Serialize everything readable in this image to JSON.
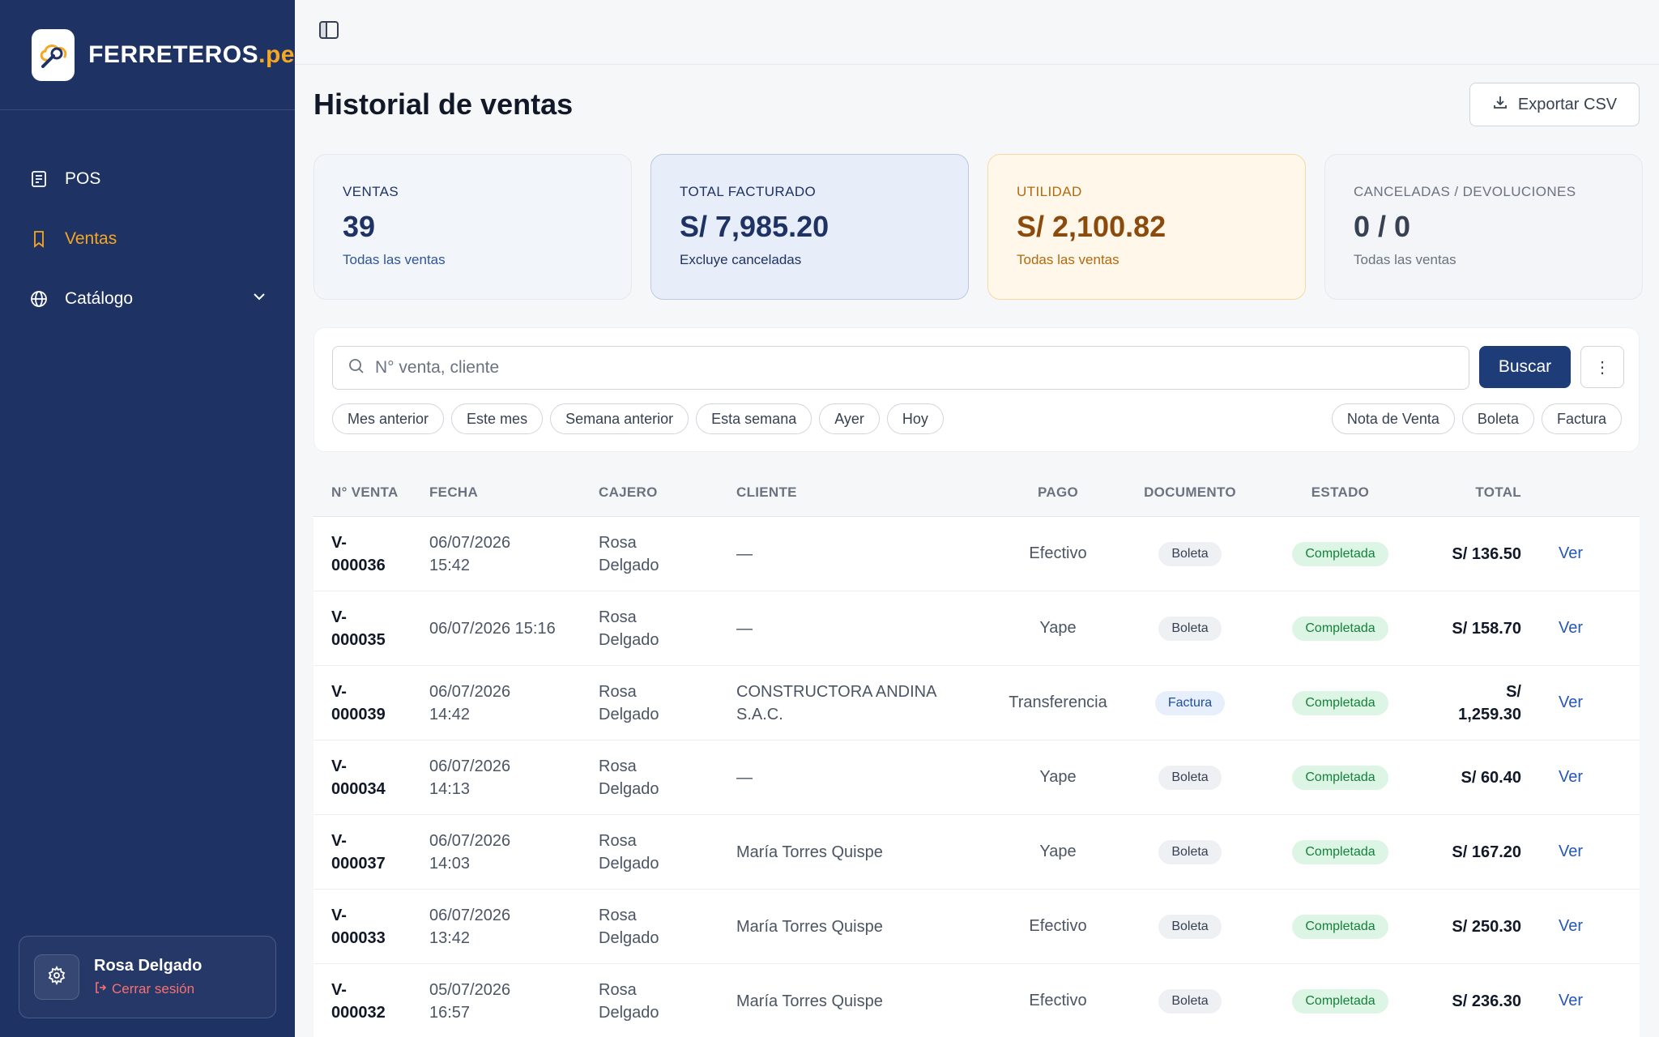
{
  "sidebar": {
    "brand": {
      "name": "FERRETEROS",
      "suffix": ".pe"
    },
    "nav": [
      {
        "label": "POS",
        "icon": "receipt-icon"
      },
      {
        "label": "Ventas",
        "icon": "bookmark-icon",
        "active": true
      },
      {
        "label": "Catálogo",
        "icon": "globe-icon"
      }
    ],
    "user": {
      "name": "Rosa Delgado",
      "logout": "Cerrar sesión"
    }
  },
  "header": {
    "title": "Historial de ventas",
    "export_label": "Exportar CSV"
  },
  "stats": [
    {
      "label": "VENTAS",
      "value": "39",
      "sub": "Todas las ventas"
    },
    {
      "label": "TOTAL FACTURADO",
      "value": "S/ 7,985.20",
      "sub": "Excluye canceladas"
    },
    {
      "label": "UTILIDAD",
      "value": "S/ 2,100.82",
      "sub": "Todas las ventas"
    },
    {
      "label": "CANCELADAS / DEVOLUCIONES",
      "value": "0 / 0",
      "sub": "Todas las ventas"
    }
  ],
  "filters": {
    "search_placeholder": "N° venta, cliente",
    "search_button": "Buscar",
    "date_chips": [
      "Mes anterior",
      "Este mes",
      "Semana anterior",
      "Esta semana",
      "Ayer",
      "Hoy"
    ],
    "doc_chips": [
      "Nota de Venta",
      "Boleta",
      "Factura"
    ]
  },
  "table": {
    "columns": [
      "N° VENTA",
      "FECHA",
      "CAJERO",
      "CLIENTE",
      "PAGO",
      "DOCUMENTO",
      "ESTADO",
      "TOTAL"
    ],
    "action_label": "Ver",
    "rows": [
      {
        "no": "V-\n000036",
        "fecha": "06/07/2026\n15:42",
        "cajero": "Rosa\nDelgado",
        "cliente": "—",
        "pago": "Efectivo",
        "documento": "Boleta",
        "estado": "Completada",
        "total": "S/ 136.50"
      },
      {
        "no": "V-\n000035",
        "fecha": "06/07/2026 15:16",
        "cajero": "Rosa\nDelgado",
        "cliente": "—",
        "pago": "Yape",
        "documento": "Boleta",
        "estado": "Completada",
        "total": "S/ 158.70"
      },
      {
        "no": "V-\n000039",
        "fecha": "06/07/2026\n14:42",
        "cajero": "Rosa\nDelgado",
        "cliente": "CONSTRUCTORA ANDINA\nS.A.C.",
        "pago": "Transferencia",
        "documento": "Factura",
        "estado": "Completada",
        "total": "S/\n1,259.30"
      },
      {
        "no": "V-\n000034",
        "fecha": "06/07/2026\n14:13",
        "cajero": "Rosa\nDelgado",
        "cliente": "—",
        "pago": "Yape",
        "documento": "Boleta",
        "estado": "Completada",
        "total": "S/ 60.40"
      },
      {
        "no": "V-\n000037",
        "fecha": "06/07/2026\n14:03",
        "cajero": "Rosa\nDelgado",
        "cliente": "María Torres Quispe",
        "pago": "Yape",
        "documento": "Boleta",
        "estado": "Completada",
        "total": "S/ 167.20"
      },
      {
        "no": "V-\n000033",
        "fecha": "06/07/2026\n13:42",
        "cajero": "Rosa\nDelgado",
        "cliente": "María Torres Quispe",
        "pago": "Efectivo",
        "documento": "Boleta",
        "estado": "Completada",
        "total": "S/ 250.30"
      },
      {
        "no": "V-\n000032",
        "fecha": "05/07/2026\n16:57",
        "cajero": "Rosa\nDelgado",
        "cliente": "María Torres Quispe",
        "pago": "Efectivo",
        "documento": "Boleta",
        "estado": "Completada",
        "total": "S/ 236.30"
      }
    ]
  },
  "colors": {
    "sidebar": "#1e3264",
    "accent": "#f5a623",
    "primary_button": "#1e3c78",
    "link": "#2557b8",
    "success": "#16803c"
  }
}
